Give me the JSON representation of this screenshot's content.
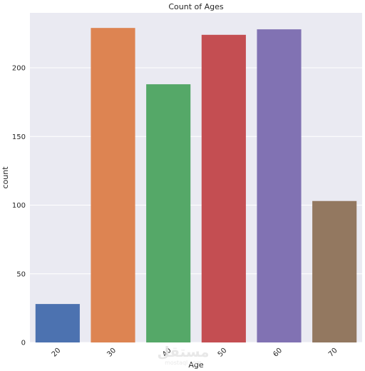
{
  "chart_data": {
    "type": "bar",
    "title": "Count of Ages",
    "xlabel": "Age",
    "ylabel": "count",
    "categories": [
      "20",
      "30",
      "40",
      "50",
      "60",
      "70"
    ],
    "values": [
      28,
      229,
      188,
      224,
      228,
      103
    ],
    "colors": [
      "#4c72b0",
      "#dd8452",
      "#55a868",
      "#c44e52",
      "#8172b3",
      "#937860"
    ],
    "ylim": [
      0,
      240
    ],
    "yticks": [
      0,
      50,
      100,
      150,
      200
    ],
    "grid": true,
    "background": "#eaeaf2",
    "xtick_rotation": 45
  },
  "watermark": {
    "arabic": "مستقل",
    "latin": "mostaql.com"
  }
}
